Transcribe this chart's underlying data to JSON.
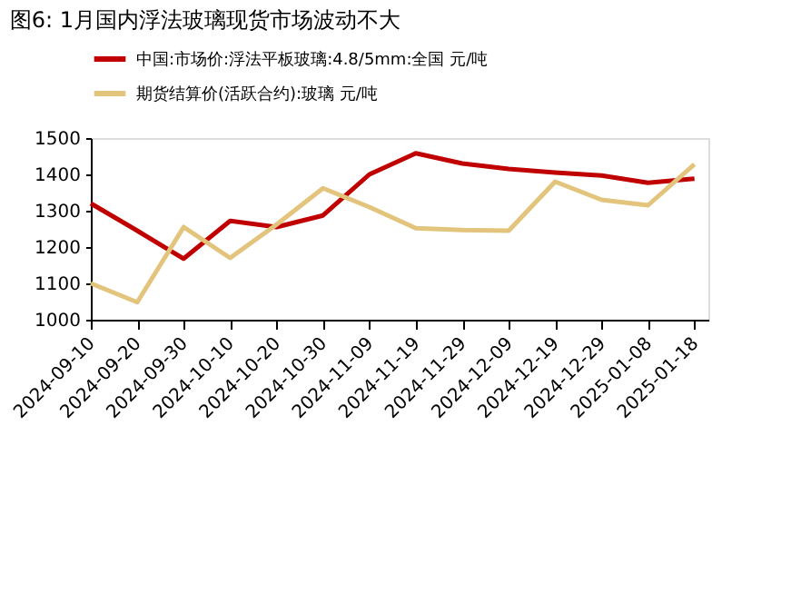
{
  "chart_data": {
    "type": "line",
    "title": "图6:   1月国内浮法玻璃现货市场波动不大",
    "categories": [
      "2024-09-10",
      "2024-09-20",
      "2024-09-30",
      "2024-10-10",
      "2024-10-20",
      "2024-10-30",
      "2024-11-09",
      "2024-11-19",
      "2024-11-29",
      "2024-12-09",
      "2024-12-19",
      "2024-12-29",
      "2025-01-08",
      "2025-01-18"
    ],
    "series": [
      {
        "name": "中国:市场价:浮法平板玻璃:4.8/5mm:全国 元/吨",
        "color": "#c00000",
        "values": [
          1320,
          1245,
          1168,
          1272,
          1255,
          1287,
          1400,
          1458,
          1430,
          1415,
          1405,
          1397,
          1377,
          1388
        ]
      },
      {
        "name": "期货结算价(活跃合约):玻璃 元/吨",
        "color": "#e3c47c",
        "values": [
          1100,
          1048,
          1255,
          1170,
          1262,
          1362,
          1310,
          1252,
          1247,
          1245,
          1380,
          1330,
          1315,
          1428
        ]
      }
    ],
    "ylim": [
      1000,
      1500
    ],
    "yticks": [
      1000,
      1100,
      1200,
      1300,
      1400,
      1500
    ],
    "grid": false,
    "legend": "top",
    "marker": "none",
    "line_style": "solid"
  }
}
